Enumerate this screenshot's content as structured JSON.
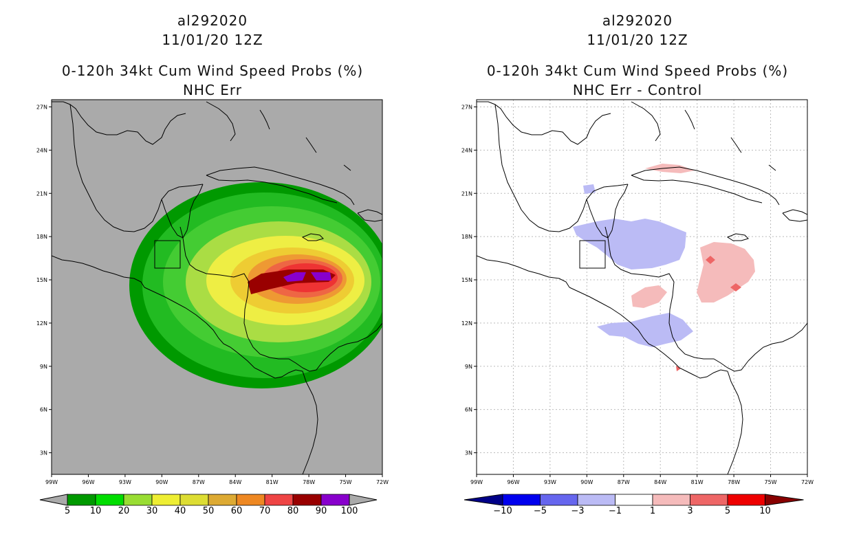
{
  "chart_data": [
    {
      "type": "heatmap",
      "title_lines": [
        "al292020",
        "11/01/20 12Z",
        "0-120h 34kt Cum Wind Speed Probs (%)",
        "NHC Err"
      ],
      "field": "Cumulative 34kt wind speed probability (%)",
      "lon_ticks": [
        "99W",
        "96W",
        "93W",
        "90W",
        "87W",
        "84W",
        "81W",
        "78W",
        "75W",
        "72W"
      ],
      "lat_ticks": [
        "27N",
        "24N",
        "21N",
        "18N",
        "15N",
        "12N",
        "9N",
        "6N",
        "3N"
      ],
      "lon_range": [
        -99,
        -72
      ],
      "lat_range": [
        1.5,
        27.5
      ],
      "colorbar": {
        "labels": [
          "5",
          "10",
          "20",
          "30",
          "40",
          "50",
          "60",
          "70",
          "80",
          "90",
          "100"
        ],
        "colors": [
          "#009900",
          "#00dd00",
          "#99dd33",
          "#eeee33",
          "#dddd33",
          "#ddaa33",
          "#ee8822",
          "#ee4444",
          "#990000",
          "#8800cc"
        ]
      },
      "contours": [
        {
          "level": "5",
          "color": "#009900"
        },
        {
          "level": "10",
          "color": "#22bb22"
        },
        {
          "level": "20",
          "color": "#44cc33"
        },
        {
          "level": "30",
          "color": "#aadd44"
        },
        {
          "level": "40",
          "color": "#eeee44"
        },
        {
          "level": "50",
          "color": "#eecc33"
        },
        {
          "level": "60",
          "color": "#ee9933"
        },
        {
          "level": "70",
          "color": "#ee6644"
        },
        {
          "level": "80",
          "color": "#ee3333"
        },
        {
          "level": "90",
          "color": "#990000"
        },
        {
          "level": "100",
          "color": "#8800cc"
        }
      ],
      "background": "#aaaaaa"
    },
    {
      "type": "heatmap",
      "title_lines": [
        "al292020",
        "11/01/20 12Z",
        "0-120h 34kt Cum Wind Speed Probs (%)",
        "NHC Err - Control"
      ],
      "field": "Difference in probability (%)",
      "lon_ticks": [
        "99W",
        "96W",
        "93W",
        "90W",
        "87W",
        "84W",
        "81W",
        "78W",
        "75W",
        "72W"
      ],
      "lat_ticks": [
        "27N",
        "24N",
        "21N",
        "18N",
        "15N",
        "12N",
        "9N",
        "6N",
        "3N"
      ],
      "lon_range": [
        -99,
        -72
      ],
      "lat_range": [
        1.5,
        27.5
      ],
      "colorbar": {
        "labels": [
          "-10",
          "-5",
          "-3",
          "-1",
          "1",
          "3",
          "5",
          "10"
        ],
        "colors": [
          "#000088",
          "#0000ee",
          "#6666ee",
          "#bbbbf5",
          "#ffffff",
          "#f5bbbb",
          "#ee6666",
          "#ee0000",
          "#880000"
        ]
      },
      "background": "#ffffff"
    }
  ]
}
